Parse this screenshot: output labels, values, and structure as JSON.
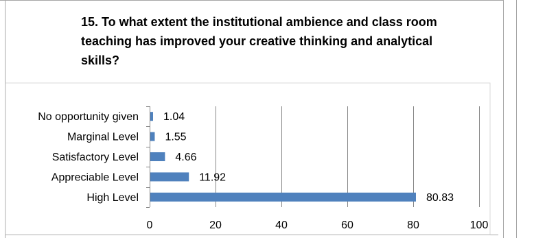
{
  "chart_data": {
    "type": "bar",
    "orientation": "horizontal",
    "title": "15. To what extent the institutional ambience and class room teaching has improved your creative thinking and analytical skills?",
    "categories": [
      "No opportunity given",
      "Marginal Level",
      "Satisfactory Level",
      "Appreciable Level",
      "High Level"
    ],
    "values": [
      1.04,
      1.55,
      4.66,
      11.92,
      80.83
    ],
    "value_labels": [
      "1.04",
      "1.55",
      "4.66",
      "11.92",
      "80.83"
    ],
    "xlim": [
      0,
      100
    ],
    "xticks": [
      0,
      20,
      40,
      60,
      80,
      100
    ],
    "xlabel": "",
    "ylabel": "",
    "grid": true,
    "legend": "none",
    "bar_color": "#4f81bd"
  }
}
